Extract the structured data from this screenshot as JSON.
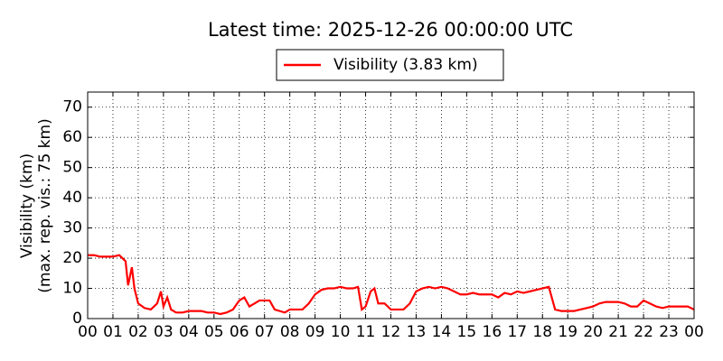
{
  "chart_data": {
    "type": "line",
    "title": "Latest time: 2025-12-26 00:00:00 UTC",
    "y_label": [
      "Visibility (km)",
      "(max. rep. vis.: 75 km)"
    ],
    "x": [
      0,
      0.25,
      0.5,
      0.75,
      1,
      1.25,
      1.5,
      1.6,
      1.75,
      1.85,
      2,
      2.25,
      2.5,
      2.75,
      2.9,
      3,
      3.15,
      3.3,
      3.5,
      3.75,
      4,
      4.25,
      4.5,
      4.75,
      5,
      5.25,
      5.5,
      5.75,
      6,
      6.2,
      6.4,
      6.6,
      6.8,
      7,
      7.2,
      7.4,
      7.6,
      7.8,
      8,
      8.25,
      8.5,
      8.75,
      9,
      9.25,
      9.5,
      9.75,
      10,
      10.25,
      10.5,
      10.7,
      10.85,
      11,
      11.2,
      11.35,
      11.5,
      11.75,
      12,
      12.25,
      12.5,
      12.75,
      13,
      13.25,
      13.5,
      13.75,
      14,
      14.25,
      14.5,
      14.75,
      15,
      15.25,
      15.5,
      15.75,
      16,
      16.25,
      16.5,
      16.75,
      17,
      17.25,
      17.5,
      17.75,
      18,
      18.25,
      18.5,
      18.75,
      19,
      19.25,
      19.5,
      19.75,
      20,
      20.25,
      20.5,
      20.75,
      21,
      21.25,
      21.5,
      21.75,
      22,
      22.25,
      22.5,
      22.75,
      23,
      23.25,
      23.5,
      23.75,
      24
    ],
    "series": [
      {
        "name": "Visibility (3.83 km)",
        "color": "#ff0000",
        "values": [
          21,
          21,
          20.5,
          20.5,
          20.5,
          21,
          19,
          11,
          17,
          10,
          5,
          3.5,
          3,
          5,
          9,
          4,
          7,
          3,
          2,
          2,
          2.5,
          2.5,
          2.5,
          2,
          2,
          1.5,
          2,
          3,
          6,
          7,
          4,
          5,
          6,
          6,
          6,
          3,
          2.5,
          2,
          3,
          3,
          3,
          5,
          8,
          9.5,
          10,
          10,
          10.5,
          10,
          10,
          10.5,
          3,
          4,
          9,
          10,
          5,
          5,
          3,
          3,
          3,
          5,
          9,
          10,
          10.5,
          10,
          10.5,
          10,
          9,
          8,
          8,
          8.5,
          8,
          8,
          8,
          7,
          8.5,
          8,
          9,
          8.5,
          9,
          9.5,
          10,
          10.5,
          3,
          2.5,
          2.5,
          2.5,
          3,
          3.5,
          4,
          5,
          5.5,
          5.5,
          5.5,
          5,
          4,
          4,
          6,
          5,
          4,
          3.5,
          4,
          4,
          4,
          4,
          3
        ]
      }
    ],
    "xlim": [
      0,
      24
    ],
    "xticks": [
      {
        "value": 0,
        "label": "00"
      },
      {
        "value": 1,
        "label": "01"
      },
      {
        "value": 2,
        "label": "02"
      },
      {
        "value": 3,
        "label": "03"
      },
      {
        "value": 4,
        "label": "04"
      },
      {
        "value": 5,
        "label": "05"
      },
      {
        "value": 6,
        "label": "06"
      },
      {
        "value": 7,
        "label": "07"
      },
      {
        "value": 8,
        "label": "08"
      },
      {
        "value": 9,
        "label": "09"
      },
      {
        "value": 10,
        "label": "10"
      },
      {
        "value": 11,
        "label": "11"
      },
      {
        "value": 12,
        "label": "12"
      },
      {
        "value": 13,
        "label": "13"
      },
      {
        "value": 14,
        "label": "14"
      },
      {
        "value": 15,
        "label": "15"
      },
      {
        "value": 16,
        "label": "16"
      },
      {
        "value": 17,
        "label": "17"
      },
      {
        "value": 18,
        "label": "18"
      },
      {
        "value": 19,
        "label": "19"
      },
      {
        "value": 20,
        "label": "20"
      },
      {
        "value": 21,
        "label": "21"
      },
      {
        "value": 22,
        "label": "22"
      },
      {
        "value": 23,
        "label": "23"
      },
      {
        "value": 24,
        "label": "00"
      }
    ],
    "ylim": [
      0,
      75
    ],
    "yticks": [
      0,
      10,
      20,
      30,
      40,
      50,
      60,
      70
    ],
    "grid": true,
    "legend": "top"
  }
}
